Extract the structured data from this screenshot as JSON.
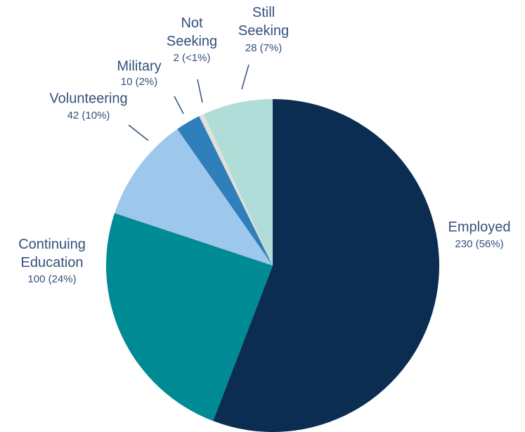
{
  "chart_data": {
    "type": "pie",
    "categories": [
      "Employed",
      "Continuing Education",
      "Volunteering",
      "Military",
      "Not Seeking",
      "Still Seeking"
    ],
    "values": [
      230,
      100,
      42,
      10,
      2,
      28
    ],
    "value_labels": [
      "230 (56%)",
      "100 (24%)",
      "42 (10%)",
      "10 (2%)",
      "2 (<1%)",
      "28 (7%)"
    ],
    "colors": [
      "#0b2d52",
      "#008a93",
      "#9dc8ec",
      "#2e7fba",
      "#e0e0dc",
      "#b0ddd8"
    ]
  }
}
